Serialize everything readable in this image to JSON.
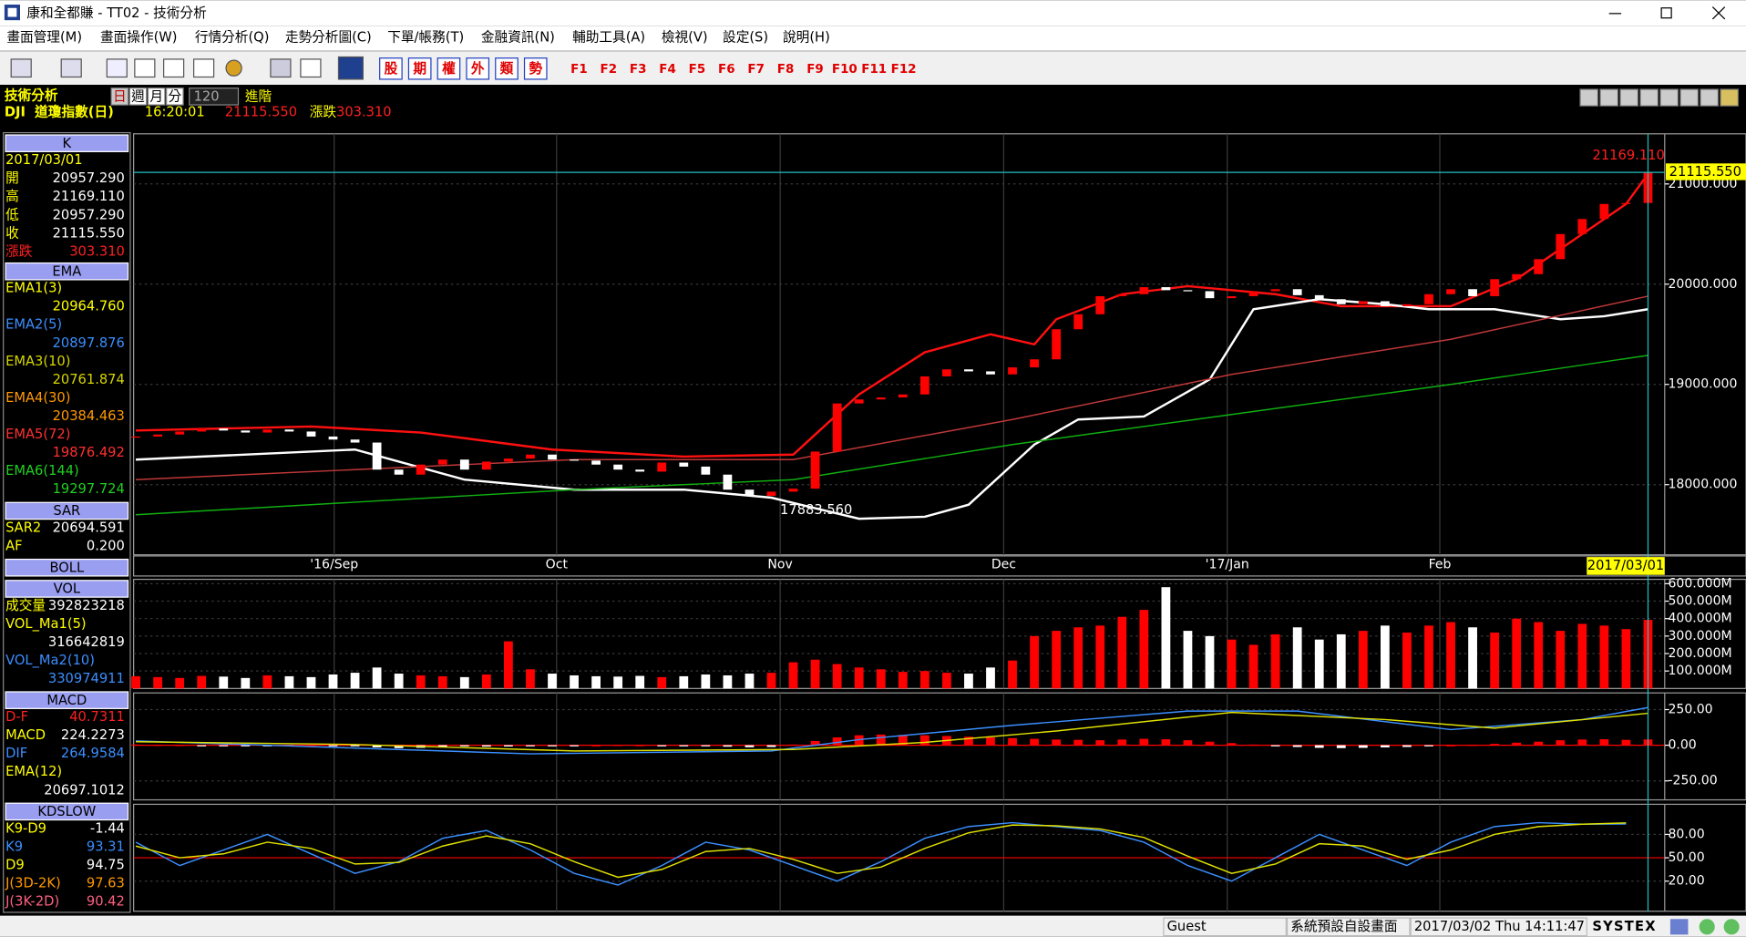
{
  "window": {
    "title": "康和全都賺 - TT02 - 技術分析"
  },
  "menu": [
    "畫面管理(M)",
    "畫面操作(W)",
    "行情分析(Q)",
    "走勢分析圖(C)",
    "下單/帳務(T)",
    "金融資訊(N)",
    "輔助工具(A)",
    "檢視(V)",
    "設定(S)",
    "說明(H)"
  ],
  "toolbar": {
    "quick": [
      "股",
      "期",
      "權",
      "外",
      "類",
      "勢"
    ],
    "function_keys": [
      "F1",
      "F2",
      "F3",
      "F4",
      "F5",
      "F6",
      "F7",
      "F8",
      "F9",
      "F10",
      "F11",
      "F12"
    ]
  },
  "info": {
    "panel_title": "技術分析",
    "periods": [
      "日",
      "週",
      "月",
      "分"
    ],
    "count": "120",
    "advanced": "進階",
    "symbol": "DJI  道瓊指數(日)",
    "time": "16:20:01",
    "price": "21115.550",
    "change_label": "漲跌",
    "change": "303.310"
  },
  "side_panel": [
    {
      "header": "K",
      "rows": [
        {
          "label": "2017/03/01"
        },
        {
          "label": "開",
          "value": "20957.290"
        },
        {
          "label": "高",
          "value": "21169.110"
        },
        {
          "label": "低",
          "value": "20957.290"
        },
        {
          "label": "收",
          "value": "21115.550"
        },
        {
          "label": "漲跌",
          "value": "303.310",
          "color": "#ff2020"
        }
      ]
    },
    {
      "header": "EMA",
      "rows": [
        {
          "label": "EMA1(3)",
          "value": "20964.760",
          "color": "#ffff00"
        },
        {
          "label": "EMA2(5)",
          "value": "20897.876",
          "color": "#3b8fff"
        },
        {
          "label": "EMA3(10)",
          "value": "20761.874",
          "color": "#d6d600"
        },
        {
          "label": "EMA4(30)",
          "value": "20384.463",
          "color": "#ff9900"
        },
        {
          "label": "EMA5(72)",
          "value": "19876.492",
          "color": "#ff3030"
        },
        {
          "label": "EMA6(144)",
          "value": "19297.724",
          "color": "#20d020"
        }
      ]
    },
    {
      "header": "SAR",
      "rows": [
        {
          "label": "SAR2",
          "value": "20694.591"
        },
        {
          "label": "AF",
          "value": "0.200"
        }
      ]
    },
    {
      "header": "BOLL",
      "rows": []
    },
    {
      "header": "VOL",
      "rows": [
        {
          "label": "成交量",
          "value": "392823218"
        },
        {
          "label": "VOL_Ma1(5)",
          "value": "316642819"
        },
        {
          "label": "VOL_Ma2(10)",
          "value": "330974911",
          "color": "#3b8fff"
        }
      ]
    },
    {
      "header": "MACD",
      "rows": [
        {
          "label": "D-F",
          "value": "40.7311",
          "color": "#ff2020"
        },
        {
          "label": "MACD",
          "value": "224.2273"
        },
        {
          "label": "DIF",
          "value": "264.9584",
          "color": "#3b8fff"
        },
        {
          "label": "EMA(12)",
          "value": "20697.1012"
        }
      ]
    },
    {
      "header": "KDSLOW",
      "rows": [
        {
          "label": "K9-D9",
          "value": "-1.44"
        },
        {
          "label": "K9",
          "value": "93.31",
          "color": "#3b8fff"
        },
        {
          "label": "D9",
          "value": "94.75"
        },
        {
          "label": "J(3D-2K)",
          "value": "97.63",
          "color": "#ff9900"
        },
        {
          "label": "J(3K-2D)",
          "value": "90.42",
          "color": "#ff6080"
        }
      ]
    }
  ],
  "chart_data": [
    {
      "type": "candlestick",
      "rising_color": "#ff0000",
      "falling_color": "#ffffff",
      "grid": true,
      "xlim": [
        0,
        69
      ],
      "xticks": [
        {
          "value": 9.05,
          "label": "'16/Sep"
        },
        {
          "value": 19.2,
          "label": "Oct"
        },
        {
          "value": 29.4,
          "label": "Nov"
        },
        {
          "value": 39.6,
          "label": "Dec"
        },
        {
          "value": 49.8,
          "label": "'17/Jan"
        },
        {
          "value": 59.5,
          "label": "Feb"
        }
      ],
      "ylim": [
        17300,
        21500
      ],
      "yticks": [
        {
          "value": 18000,
          "label": "18000.000"
        },
        {
          "value": 19000,
          "label": "19000.000"
        },
        {
          "value": 20000,
          "label": "20000.000"
        },
        {
          "value": 21000,
          "label": "21000.000"
        }
      ],
      "values": [
        18480,
        18500,
        18530,
        18560,
        18540,
        18520,
        18550,
        18530,
        18480,
        18450,
        18420,
        18150,
        18100,
        18200,
        18250,
        18150,
        18230,
        18260,
        18300,
        18250,
        18240,
        18200,
        18150,
        18130,
        18220,
        18180,
        18100,
        17950,
        17888,
        17930,
        17960,
        18330,
        18810,
        18850,
        18870,
        18900,
        19080,
        19150,
        19130,
        19100,
        19170,
        19250,
        19550,
        19700,
        19880,
        19900,
        19970,
        19940,
        19930,
        19860,
        19880,
        19930,
        19950,
        19890,
        19850,
        19800,
        19830,
        19780,
        19800,
        19900,
        19950,
        19880,
        20050,
        20100,
        20250,
        20500,
        20650,
        20800,
        20810,
        21115.55
      ],
      "series": [
        {
          "color": "#ff1010",
          "x": [
            0,
            8,
            13,
            19,
            25,
            30,
            33,
            36,
            39,
            41,
            42,
            45,
            48,
            52,
            55,
            60,
            63,
            66,
            68,
            69
          ],
          "values": [
            18540,
            18580,
            18520,
            18350,
            18280,
            18300,
            18900,
            19320,
            19500,
            19400,
            19650,
            19900,
            19980,
            19900,
            19780,
            19780,
            20050,
            20500,
            20800,
            21100
          ]
        },
        {
          "color": "#ffffff",
          "x": [
            0,
            10,
            15,
            20,
            25,
            29,
            33,
            36,
            38,
            41,
            43,
            46,
            49,
            51,
            54,
            57,
            59,
            62,
            65,
            67,
            69
          ],
          "values": [
            18250,
            18350,
            18050,
            17950,
            17950,
            17870,
            17660,
            17680,
            17800,
            18400,
            18650,
            18680,
            19050,
            19750,
            19850,
            19800,
            19750,
            19750,
            19650,
            19680,
            19750
          ]
        },
        {
          "color": "#c03838",
          "x": [
            0,
            20,
            30,
            40,
            50,
            60,
            69
          ],
          "values": [
            18050,
            18250,
            18250,
            18650,
            19100,
            19450,
            19880
          ]
        },
        {
          "color": "#10b010",
          "x": [
            0,
            20,
            30,
            40,
            50,
            60,
            69
          ],
          "values": [
            17700,
            17950,
            18050,
            18400,
            18700,
            19000,
            19290
          ]
        }
      ],
      "annotations": [
        "17883.560",
        "21169.110"
      ],
      "price_tag": "21115.550"
    },
    {
      "type": "bar",
      "xlim": [
        0,
        69
      ],
      "ylim": [
        0,
        625000000
      ],
      "yticks": [
        {
          "value": 100000000,
          "label": "100.000M"
        },
        {
          "value": 200000000,
          "label": "200.000M"
        },
        {
          "value": 300000000,
          "label": "300.000M"
        },
        {
          "value": 400000000,
          "label": "400.000M"
        },
        {
          "value": 500000000,
          "label": "500.000M"
        },
        {
          "value": 600000000,
          "label": "600.000M"
        }
      ],
      "values": [
        70000000,
        65000000,
        60000000,
        72000000,
        68000000,
        60000000,
        75000000,
        70000000,
        65000000,
        80000000,
        90000000,
        120000000,
        85000000,
        75000000,
        70000000,
        65000000,
        80000000,
        270000000,
        110000000,
        85000000,
        75000000,
        70000000,
        68000000,
        72000000,
        65000000,
        70000000,
        80000000,
        75000000,
        85000000,
        90000000,
        150000000,
        165000000,
        140000000,
        120000000,
        110000000,
        95000000,
        100000000,
        90000000,
        85000000,
        120000000,
        160000000,
        300000000,
        330000000,
        350000000,
        360000000,
        410000000,
        450000000,
        580000000,
        330000000,
        300000000,
        280000000,
        250000000,
        310000000,
        350000000,
        280000000,
        310000000,
        330000000,
        360000000,
        320000000,
        360000000,
        380000000,
        350000000,
        320000000,
        400000000,
        380000000,
        330000000,
        370000000,
        360000000,
        340000000,
        392823218
      ]
    },
    {
      "type": "macd",
      "xlim": [
        0,
        69
      ],
      "ylim": [
        -383,
        367
      ],
      "rising_color": "#ff0000",
      "falling_color": "#ffffff",
      "yticks": [
        {
          "value": -250,
          "label": "-250.00"
        },
        {
          "value": 0,
          "label": "0.00"
        },
        {
          "value": 250,
          "label": "250.00"
        }
      ],
      "values": [
        5,
        3,
        2,
        -2,
        -4,
        -3,
        -2,
        -1,
        0,
        -3,
        -6,
        -15,
        -20,
        -18,
        -12,
        -8,
        -10,
        -9,
        -6,
        -4,
        -2,
        0,
        2,
        1,
        -1,
        -3,
        -6,
        -10,
        -14,
        -12,
        5,
        30,
        55,
        70,
        75,
        72,
        70,
        65,
        60,
        55,
        50,
        45,
        40,
        38,
        35,
        40,
        45,
        42,
        35,
        25,
        15,
        5,
        -5,
        -12,
        -18,
        -20,
        -18,
        -15,
        -12,
        -5,
        0,
        3,
        10,
        18,
        25,
        35,
        40,
        42,
        38,
        40.73
      ],
      "series": [
        {
          "color": "#3b8fff",
          "x": [
            0,
            10,
            18,
            29,
            33,
            40,
            48,
            53,
            60,
            66,
            69
          ],
          "values": [
            30,
            -20,
            -60,
            -40,
            40,
            140,
            240,
            240,
            110,
            180,
            264.96
          ]
        },
        {
          "color": "#e0e000",
          "x": [
            0,
            10,
            20,
            30,
            36,
            42,
            50,
            57,
            62,
            69
          ],
          "values": [
            25,
            5,
            -40,
            -30,
            20,
            100,
            230,
            180,
            120,
            224.23
          ]
        }
      ]
    },
    {
      "type": "line",
      "xlim": [
        0,
        69
      ],
      "ylim": [
        -18.6,
        118.6
      ],
      "yticks": [
        {
          "value": 20,
          "label": "20.00"
        },
        {
          "value": 50,
          "label": "50.00"
        },
        {
          "value": 80,
          "label": "80.00"
        }
      ],
      "series": [
        {
          "color": "#3b8fff",
          "x": [
            0,
            2,
            4,
            6,
            8,
            10,
            12,
            14,
            16,
            18,
            20,
            22,
            24,
            26,
            28,
            30,
            32,
            34,
            36,
            38,
            40,
            42,
            44,
            46,
            48,
            50,
            52,
            54,
            56,
            58,
            60,
            62,
            64,
            66,
            68
          ],
          "values": [
            70,
            40,
            60,
            80,
            55,
            30,
            45,
            75,
            85,
            60,
            30,
            15,
            40,
            70,
            60,
            40,
            20,
            45,
            75,
            90,
            95,
            90,
            85,
            70,
            40,
            20,
            50,
            80,
            60,
            40,
            70,
            90,
            95,
            93,
            93.31
          ]
        },
        {
          "color": "#e0e000",
          "x": [
            0,
            2,
            4,
            6,
            8,
            10,
            12,
            14,
            16,
            18,
            20,
            22,
            24,
            26,
            28,
            30,
            32,
            34,
            36,
            38,
            40,
            42,
            44,
            46,
            48,
            50,
            52,
            54,
            56,
            58,
            60,
            62,
            64,
            66,
            68
          ],
          "values": [
            65,
            50,
            55,
            70,
            62,
            42,
            44,
            65,
            78,
            68,
            45,
            25,
            35,
            58,
            62,
            48,
            30,
            38,
            62,
            82,
            92,
            91,
            87,
            76,
            52,
            30,
            42,
            68,
            65,
            48,
            60,
            80,
            90,
            93,
            94.75
          ]
        }
      ]
    }
  ],
  "status": {
    "user": "Guest",
    "layout": "系統預設自設畫面",
    "datetime": "2017/03/02 Thu 14:11:47",
    "brand": "SYSTEX"
  }
}
